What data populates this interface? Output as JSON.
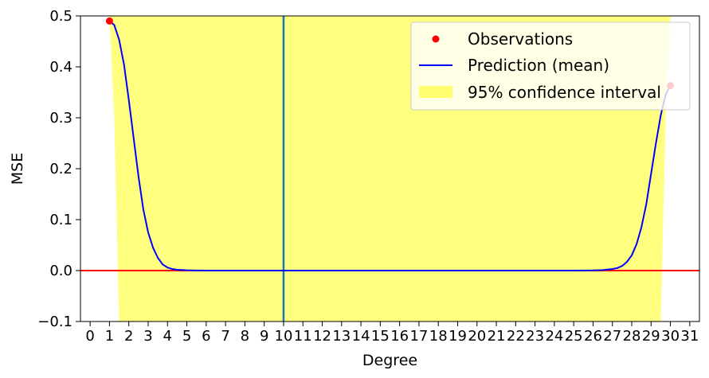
{
  "chart_data": {
    "type": "line",
    "title": "",
    "xlabel": "Degree",
    "ylabel": "MSE",
    "xlim": [
      -0.5,
      31.5
    ],
    "ylim": [
      -0.1,
      0.5
    ],
    "xticks": [
      0,
      1,
      2,
      3,
      4,
      5,
      6,
      7,
      8,
      9,
      10,
      11,
      12,
      13,
      14,
      15,
      16,
      17,
      18,
      19,
      20,
      21,
      22,
      23,
      24,
      25,
      26,
      27,
      28,
      29,
      30,
      31
    ],
    "yticks": [
      -0.1,
      0.0,
      0.1,
      0.2,
      0.3,
      0.4,
      0.5
    ],
    "ytick_labels": [
      "−0.1",
      "0.0",
      "0.1",
      "0.2",
      "0.3",
      "0.4",
      "0.5"
    ],
    "grid": false,
    "legend_position": "top-right",
    "observations": {
      "name": "Observations",
      "color": "#ff0000",
      "x": [
        1,
        30
      ],
      "y": [
        0.49,
        0.363
      ]
    },
    "prediction": {
      "name": "Prediction (mean)",
      "color": "#0000ff",
      "x": [
        1,
        1.25,
        1.5,
        1.75,
        2,
        2.25,
        2.5,
        2.75,
        3,
        3.25,
        3.5,
        3.75,
        4,
        4.25,
        4.5,
        5,
        5.5,
        6,
        7,
        8,
        10,
        14,
        18,
        22,
        25,
        26,
        26.5,
        27,
        27.25,
        27.5,
        27.75,
        28,
        28.25,
        28.5,
        28.75,
        29,
        29.25,
        29.5,
        29.75,
        30
      ],
      "y": [
        0.49,
        0.482,
        0.453,
        0.405,
        0.335,
        0.26,
        0.185,
        0.12,
        0.075,
        0.045,
        0.025,
        0.012,
        0.006,
        0.003,
        0.0015,
        0.0005,
        0.0002,
        0.0001,
        0,
        0,
        0,
        0,
        0,
        0,
        0,
        0.0003,
        0.001,
        0.003,
        0.005,
        0.009,
        0.017,
        0.03,
        0.052,
        0.085,
        0.13,
        0.19,
        0.25,
        0.305,
        0.345,
        0.365
      ]
    },
    "confidence_interval": {
      "name": "95% confidence interval",
      "color": "#ffff00",
      "opacity": 0.5,
      "x": [
        1,
        1.25,
        1.5,
        2,
        28,
        29.5,
        29.75,
        30
      ],
      "lower": [
        0.5,
        0.3,
        -0.1,
        -0.1,
        -0.1,
        -0.1,
        0.3,
        0.5
      ],
      "upper": [
        0.5,
        0.5,
        0.5,
        0.5,
        0.5,
        0.5,
        0.5,
        0.5
      ]
    },
    "reference_lines": [
      {
        "orientation": "horizontal",
        "value": 0.0,
        "color": "#ff0000"
      },
      {
        "orientation": "vertical",
        "value": 10,
        "color": "#1f77b4"
      }
    ]
  }
}
